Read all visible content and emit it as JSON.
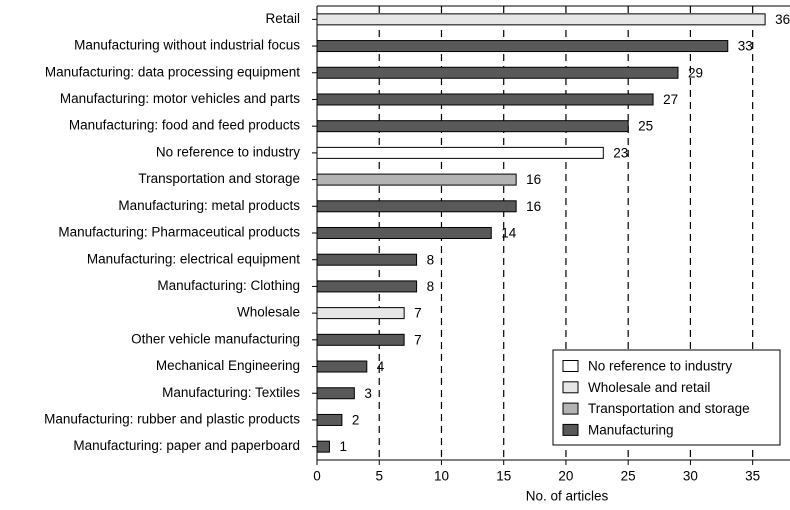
{
  "chart_data": {
    "type": "bar",
    "orientation": "horizontal",
    "categories": [
      "Retail",
      "Manufacturing without industrial focus",
      "Manufacturing: data processing equipment",
      "Manufacturing: motor vehicles and parts",
      "Manufacturing: food and feed products",
      "No reference to industry",
      "Transportation and storage",
      "Manufacturing: metal products ",
      "Manufacturing: Pharmaceutical products",
      "Manufacturing: electrical equipment",
      "Manufacturing: Clothing",
      "Wholesale",
      "Other vehicle manufacturing",
      "Mechanical Engineering",
      "Manufacturing: Textiles",
      "Manufacturing: rubber and plastic products",
      "Manufacturing: paper and paperboard"
    ],
    "series": [
      {
        "name": "No reference to industry",
        "color": "#ffffff",
        "values": [
          null,
          null,
          null,
          null,
          null,
          23,
          null,
          null,
          null,
          null,
          null,
          null,
          null,
          null,
          null,
          null,
          null
        ]
      },
      {
        "name": "Wholesale and retail",
        "color": "#e6e6e6",
        "values": [
          36,
          null,
          null,
          null,
          null,
          null,
          null,
          null,
          null,
          null,
          null,
          7,
          null,
          null,
          null,
          null,
          null
        ]
      },
      {
        "name": "Transportation and storage",
        "color": "#b3b3b3",
        "values": [
          null,
          null,
          null,
          null,
          null,
          null,
          16,
          null,
          null,
          null,
          null,
          null,
          null,
          null,
          null,
          null,
          null
        ]
      },
      {
        "name": "Manufacturing",
        "color": "#595959",
        "values": [
          null,
          33,
          29,
          27,
          25,
          null,
          null,
          16,
          14,
          8,
          8,
          null,
          7,
          4,
          3,
          2,
          1
        ]
      }
    ],
    "xlabel": "No. of articles",
    "xlim": [
      0,
      38
    ],
    "xticks": [
      0,
      5,
      10,
      15,
      20,
      25,
      30,
      35
    ],
    "grid": true,
    "legend": "lower right"
  }
}
